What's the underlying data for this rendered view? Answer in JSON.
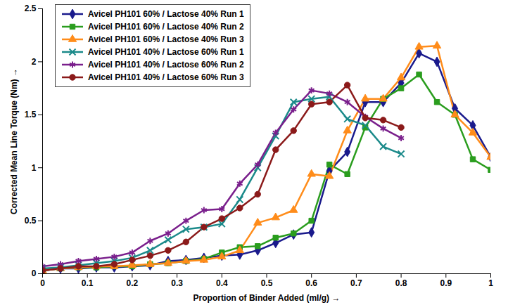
{
  "chart_data": {
    "type": "line",
    "x_label": "Proportion of Binder Added (ml/g)",
    "y_label": "Corrected Mean Line Torque (Nm)",
    "x": [
      0,
      0.04,
      0.08,
      0.12,
      0.16,
      0.2,
      0.24,
      0.28,
      0.32,
      0.36,
      0.4,
      0.44,
      0.48,
      0.52,
      0.56,
      0.6,
      0.64,
      0.68,
      0.72,
      0.76,
      0.8,
      0.84,
      0.88,
      0.92,
      0.96,
      1
    ],
    "xlim": [
      0,
      1
    ],
    "xticks": [
      0,
      0.1,
      0.2,
      0.3,
      0.4,
      0.5,
      0.6,
      0.7,
      0.8,
      0.9,
      1
    ],
    "ylim": [
      0,
      2.5
    ],
    "yticks": [
      0,
      0.5,
      1,
      1.5,
      2,
      2.5
    ],
    "grid": false,
    "legend": "top-left",
    "series": [
      {
        "name": "Avicel PH101 60% / Lactose 40% Run 1",
        "color": "#1a1a8c",
        "marker": "diamond",
        "values": [
          0.03,
          0.05,
          0.05,
          0.06,
          0.06,
          0.07,
          0.08,
          0.12,
          0.13,
          0.15,
          0.17,
          0.18,
          0.22,
          0.29,
          0.37,
          0.39,
          0.97,
          1.15,
          1.62,
          1.62,
          1.8,
          2.08,
          2.0,
          1.56,
          1.4,
          1.1
        ]
      },
      {
        "name": "Avicel PH101 60% / Lactose 40% Run 2",
        "color": "#2a9d1e",
        "marker": "square",
        "values": [
          0.03,
          0.05,
          0.06,
          0.06,
          0.07,
          0.07,
          0.09,
          0.1,
          0.12,
          0.14,
          0.2,
          0.25,
          0.26,
          0.34,
          0.38,
          0.5,
          1.03,
          0.94,
          1.38,
          1.65,
          1.75,
          1.88,
          1.62,
          1.5,
          1.08,
          0.98
        ]
      },
      {
        "name": "Avicel PH101 60% / Lactose 40% Run 3",
        "color": "#ff8c1a",
        "marker": "triangle",
        "values": [
          0.03,
          0.05,
          0.06,
          0.07,
          0.07,
          0.08,
          0.09,
          0.1,
          0.12,
          0.13,
          0.16,
          0.22,
          0.48,
          0.53,
          0.6,
          0.94,
          0.92,
          1.35,
          1.65,
          1.65,
          1.85,
          2.14,
          2.15,
          1.5,
          1.33,
          1.1
        ]
      },
      {
        "name": "Avicel PH101 40% / Lactose 60% Run 1",
        "color": "#1b8a8a",
        "marker": "times",
        "values": [
          0.05,
          0.06,
          0.08,
          0.1,
          0.12,
          0.15,
          0.22,
          0.32,
          0.42,
          0.44,
          0.47,
          0.7,
          1.0,
          1.3,
          1.62,
          1.65,
          1.67,
          1.46,
          1.4,
          1.2,
          1.13,
          null,
          null,
          null,
          null,
          null
        ]
      },
      {
        "name": "Avicel PH101 40% / Lactose 60% Run 2",
        "color": "#7a1f8c",
        "marker": "asterisk",
        "values": [
          0.07,
          0.09,
          0.12,
          0.14,
          0.16,
          0.2,
          0.31,
          0.38,
          0.5,
          0.6,
          0.61,
          0.85,
          1.03,
          1.33,
          1.55,
          1.73,
          1.7,
          1.62,
          1.48,
          1.37,
          1.28,
          null,
          null,
          null,
          null,
          null
        ]
      },
      {
        "name": "Avicel PH101 40% / Lactose 60% Run 3",
        "color": "#8b1a1a",
        "marker": "circle",
        "values": [
          0.03,
          0.05,
          0.07,
          0.07,
          0.09,
          0.13,
          0.17,
          0.22,
          0.3,
          0.44,
          0.52,
          0.62,
          0.75,
          1.17,
          1.35,
          1.6,
          1.62,
          1.78,
          1.47,
          1.45,
          1.38,
          null,
          null,
          null,
          null,
          null
        ]
      }
    ]
  }
}
